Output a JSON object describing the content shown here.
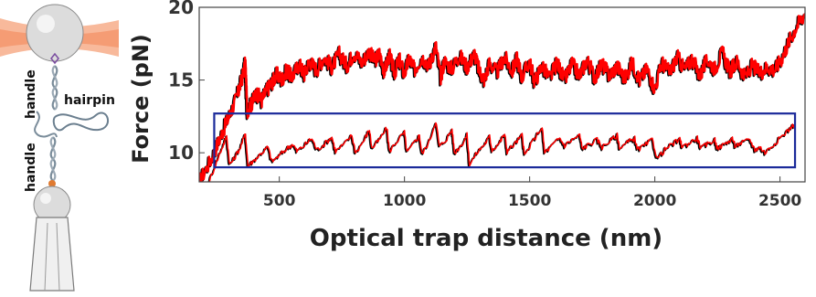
{
  "diagram": {
    "labels": {
      "top_handle": "handle",
      "hairpin": "hairpin",
      "bottom_handle": "handle"
    },
    "colors": {
      "laser": "#f6a27a",
      "bead": "#d9d9d9",
      "dna": "#7a8c9a",
      "hairpin": "#6b7f8f",
      "linker": "#e07a30"
    }
  },
  "chart_data": {
    "type": "line",
    "title": "",
    "xlabel": "Optical trap distance (nm)",
    "ylabel": "Force (pN)",
    "xlim": [
      180,
      2600
    ],
    "ylim": [
      8,
      20
    ],
    "xticks": [
      500,
      1000,
      1500,
      2000,
      2500
    ],
    "yticks": [
      10,
      15,
      20
    ],
    "grid": false,
    "legend": "none",
    "highlight_box": {
      "x": [
        240,
        2560
      ],
      "y": [
        9,
        12.7
      ],
      "color": "#1b2a9a"
    },
    "series": [
      {
        "color": "#ff0000",
        "shadow_color": "#000000",
        "points": [
          [
            180,
            8.0
          ],
          [
            230,
            9.6
          ],
          [
            270,
            11.3
          ],
          [
            300,
            12.5
          ],
          [
            330,
            13.8
          ],
          [
            350,
            15.0
          ],
          [
            365,
            16.2
          ],
          [
            372,
            12.9
          ],
          [
            390,
            13.4
          ],
          [
            410,
            14.1
          ],
          [
            430,
            13.6
          ],
          [
            450,
            14.3
          ],
          [
            470,
            14.8
          ],
          [
            490,
            15.4
          ],
          [
            510,
            15.0
          ],
          [
            530,
            15.7
          ],
          [
            550,
            15.2
          ],
          [
            580,
            16.1
          ],
          [
            600,
            15.4
          ],
          [
            620,
            16.3
          ],
          [
            650,
            15.7
          ],
          [
            680,
            16.6
          ],
          [
            710,
            15.9
          ],
          [
            740,
            16.8
          ],
          [
            770,
            16.0
          ],
          [
            800,
            16.9
          ],
          [
            830,
            16.2
          ],
          [
            860,
            17.0
          ],
          [
            880,
            16.3
          ],
          [
            900,
            16.8
          ],
          [
            920,
            15.6
          ],
          [
            940,
            16.7
          ],
          [
            960,
            15.5
          ],
          [
            980,
            16.4
          ],
          [
            1000,
            15.4
          ],
          [
            1020,
            16.5
          ],
          [
            1040,
            15.7
          ],
          [
            1070,
            16.6
          ],
          [
            1100,
            16.0
          ],
          [
            1125,
            17.4
          ],
          [
            1145,
            15.2
          ],
          [
            1160,
            16.3
          ],
          [
            1190,
            15.8
          ],
          [
            1220,
            16.7
          ],
          [
            1250,
            15.9
          ],
          [
            1280,
            16.8
          ],
          [
            1300,
            15.6
          ],
          [
            1320,
            15.0
          ],
          [
            1340,
            16.2
          ],
          [
            1370,
            15.5
          ],
          [
            1400,
            16.6
          ],
          [
            1430,
            15.6
          ],
          [
            1450,
            16.5
          ],
          [
            1470,
            15.2
          ],
          [
            1500,
            16.3
          ],
          [
            1520,
            14.9
          ],
          [
            1550,
            16.0
          ],
          [
            1580,
            15.1
          ],
          [
            1610,
            16.2
          ],
          [
            1640,
            15.0
          ],
          [
            1670,
            16.1
          ],
          [
            1700,
            15.3
          ],
          [
            1730,
            16.4
          ],
          [
            1760,
            15.2
          ],
          [
            1790,
            16.1
          ],
          [
            1820,
            15.3
          ],
          [
            1850,
            16.0
          ],
          [
            1880,
            15.1
          ],
          [
            1910,
            16.2
          ],
          [
            1940,
            15.0
          ],
          [
            1970,
            15.8
          ],
          [
            2000,
            14.4
          ],
          [
            2030,
            16.2
          ],
          [
            2060,
            15.5
          ],
          [
            2090,
            16.6
          ],
          [
            2120,
            15.7
          ],
          [
            2150,
            16.5
          ],
          [
            2180,
            15.3
          ],
          [
            2210,
            16.4
          ],
          [
            2240,
            15.8
          ],
          [
            2270,
            16.9
          ],
          [
            2300,
            15.6
          ],
          [
            2330,
            16.3
          ],
          [
            2360,
            15.2
          ],
          [
            2390,
            16.0
          ],
          [
            2420,
            15.5
          ],
          [
            2450,
            15.9
          ],
          [
            2480,
            15.7
          ],
          [
            2510,
            16.6
          ],
          [
            2540,
            17.8
          ],
          [
            2570,
            18.8
          ],
          [
            2600,
            19.6
          ]
        ]
      },
      {
        "color": "#ff0000",
        "shadow_color": "#000000",
        "points": [
          [
            220,
            8.0
          ],
          [
            250,
            9.4
          ],
          [
            275,
            10.5
          ],
          [
            290,
            11.1
          ],
          [
            302,
            9.2
          ],
          [
            320,
            9.6
          ],
          [
            345,
            10.4
          ],
          [
            365,
            11.3
          ],
          [
            375,
            9.1
          ],
          [
            400,
            9.5
          ],
          [
            430,
            10.0
          ],
          [
            455,
            10.4
          ],
          [
            470,
            9.4
          ],
          [
            500,
            9.8
          ],
          [
            530,
            10.3
          ],
          [
            555,
            10.6
          ],
          [
            570,
            10.1
          ],
          [
            600,
            10.5
          ],
          [
            630,
            11.0
          ],
          [
            650,
            10.2
          ],
          [
            680,
            10.6
          ],
          [
            710,
            11.1
          ],
          [
            725,
            10.1
          ],
          [
            760,
            10.6
          ],
          [
            790,
            11.2
          ],
          [
            805,
            10.0
          ],
          [
            840,
            10.9
          ],
          [
            860,
            11.6
          ],
          [
            870,
            10.3
          ],
          [
            900,
            10.9
          ],
          [
            930,
            11.7
          ],
          [
            940,
            10.1
          ],
          [
            970,
            10.8
          ],
          [
            1000,
            11.4
          ],
          [
            1010,
            10.0
          ],
          [
            1040,
            10.7
          ],
          [
            1060,
            11.2
          ],
          [
            1070,
            9.9
          ],
          [
            1100,
            10.8
          ],
          [
            1125,
            12.2
          ],
          [
            1140,
            10.4
          ],
          [
            1170,
            11.0
          ],
          [
            1190,
            11.6
          ],
          [
            1200,
            10.0
          ],
          [
            1230,
            10.6
          ],
          [
            1250,
            11.2
          ],
          [
            1260,
            9.2
          ],
          [
            1290,
            10.0
          ],
          [
            1320,
            10.6
          ],
          [
            1340,
            11.1
          ],
          [
            1350,
            10.2
          ],
          [
            1380,
            10.7
          ],
          [
            1400,
            11.3
          ],
          [
            1410,
            10.1
          ],
          [
            1440,
            10.6
          ],
          [
            1470,
            11.2
          ],
          [
            1480,
            9.8
          ],
          [
            1510,
            10.7
          ],
          [
            1550,
            11.8
          ],
          [
            1560,
            10.0
          ],
          [
            1590,
            10.5
          ],
          [
            1620,
            11.0
          ],
          [
            1640,
            10.5
          ],
          [
            1670,
            10.9
          ],
          [
            1700,
            11.2
          ],
          [
            1710,
            10.3
          ],
          [
            1740,
            10.6
          ],
          [
            1770,
            10.9
          ],
          [
            1790,
            10.4
          ],
          [
            1820,
            10.8
          ],
          [
            1850,
            11.2
          ],
          [
            1860,
            10.3
          ],
          [
            1890,
            10.7
          ],
          [
            1920,
            11.0
          ],
          [
            1930,
            10.2
          ],
          [
            1960,
            10.5
          ],
          [
            1990,
            10.9
          ],
          [
            2010,
            9.6
          ],
          [
            2040,
            10.2
          ],
          [
            2070,
            10.6
          ],
          [
            2100,
            10.9
          ],
          [
            2110,
            10.4
          ],
          [
            2140,
            10.7
          ],
          [
            2170,
            11.0
          ],
          [
            2185,
            10.3
          ],
          [
            2210,
            10.6
          ],
          [
            2240,
            10.9
          ],
          [
            2250,
            10.3
          ],
          [
            2280,
            10.6
          ],
          [
            2310,
            11.0
          ],
          [
            2320,
            10.5
          ],
          [
            2350,
            10.7
          ],
          [
            2380,
            10.9
          ],
          [
            2400,
            10.2
          ],
          [
            2420,
            10.4
          ],
          [
            2440,
            10.0
          ],
          [
            2470,
            10.5
          ],
          [
            2500,
            11.0
          ],
          [
            2530,
            11.5
          ],
          [
            2560,
            12.0
          ]
        ]
      }
    ]
  }
}
